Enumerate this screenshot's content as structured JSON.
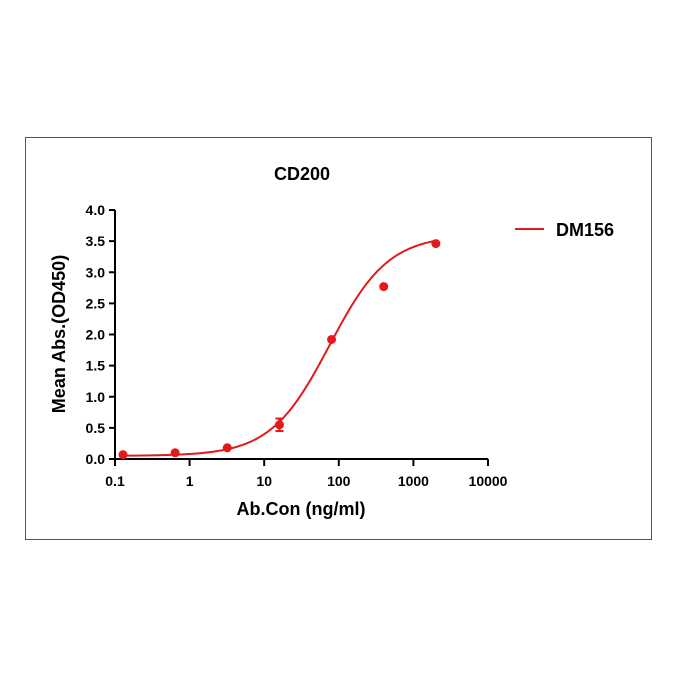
{
  "chart_data": {
    "type": "scatter",
    "title": "CD200",
    "xlabel": "Ab.Con (ng/ml)",
    "ylabel": "Mean Abs.(OD450)",
    "xscale": "log",
    "xlim": [
      0.1,
      10000
    ],
    "ylim": [
      0,
      4.0
    ],
    "xticks": [
      0.1,
      1,
      10,
      100,
      1000,
      10000
    ],
    "xtick_labels": [
      "0.1",
      "1",
      "10",
      "100",
      "1000",
      "10000"
    ],
    "yticks": [
      0,
      0.5,
      1.0,
      1.5,
      2.0,
      2.5,
      3.0,
      3.5,
      4.0
    ],
    "ytick_labels": [
      "0.0",
      "0.5",
      "1.0",
      "1.5",
      "2.0",
      "2.5",
      "3.0",
      "3.5",
      "4.0"
    ],
    "grid": false,
    "legend_position": "top-right",
    "color": "#e31a1c",
    "series": [
      {
        "name": "DM156",
        "points": [
          {
            "x": 0.128,
            "y": 0.07
          },
          {
            "x": 0.64,
            "y": 0.1
          },
          {
            "x": 3.2,
            "y": 0.18
          },
          {
            "x": 16,
            "y": 0.55,
            "err": 0.1
          },
          {
            "x": 80,
            "y": 1.92
          },
          {
            "x": 400,
            "y": 2.77
          },
          {
            "x": 2000,
            "y": 3.46
          }
        ],
        "fit": {
          "model": "4PL",
          "bottom": 0.05,
          "top": 3.6,
          "ec50": 75,
          "hill": 1.1
        }
      }
    ]
  }
}
